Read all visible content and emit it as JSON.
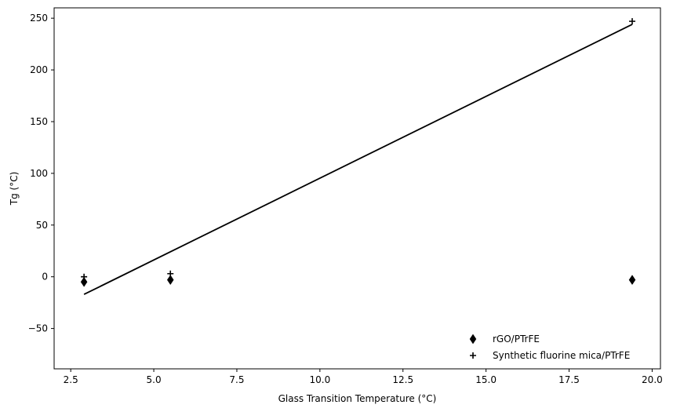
{
  "chart_data": {
    "type": "scatter",
    "title": "",
    "xlabel": "Glass Transition Temperature (°C)",
    "ylabel": "Tg (°C)",
    "xlim": [
      2.0,
      20.25
    ],
    "ylim": [
      -89,
      260
    ],
    "xticks": [
      2.5,
      5.0,
      7.5,
      10.0,
      12.5,
      15.0,
      17.5,
      20.0
    ],
    "xtick_labels": [
      "2.5",
      "5.0",
      "7.5",
      "10.0",
      "12.5",
      "15.0",
      "17.5",
      "20.0"
    ],
    "yticks": [
      -50,
      0,
      50,
      100,
      150,
      200,
      250
    ],
    "ytick_labels": [
      "−50",
      "0",
      "50",
      "100",
      "150",
      "200",
      "250"
    ],
    "grid": false,
    "legend_position": "bottom-right",
    "series": [
      {
        "name": "rGO/PTrFE",
        "marker": "thin-diamond",
        "color": "#000000",
        "points": [
          {
            "x": 2.9,
            "y": -5
          },
          {
            "x": 5.5,
            "y": -3
          },
          {
            "x": 19.4,
            "y": -3
          }
        ]
      },
      {
        "name": "Synthetic fluorine mica/PTrFE",
        "marker": "plus",
        "color": "#000000",
        "points": [
          {
            "x": 2.9,
            "y": 0
          },
          {
            "x": 5.5,
            "y": 3
          },
          {
            "x": 19.4,
            "y": 247
          }
        ]
      }
    ],
    "fit_line": {
      "color": "#000000",
      "points": [
        {
          "x": 2.9,
          "y": -17
        },
        {
          "x": 19.4,
          "y": 244
        }
      ]
    }
  }
}
